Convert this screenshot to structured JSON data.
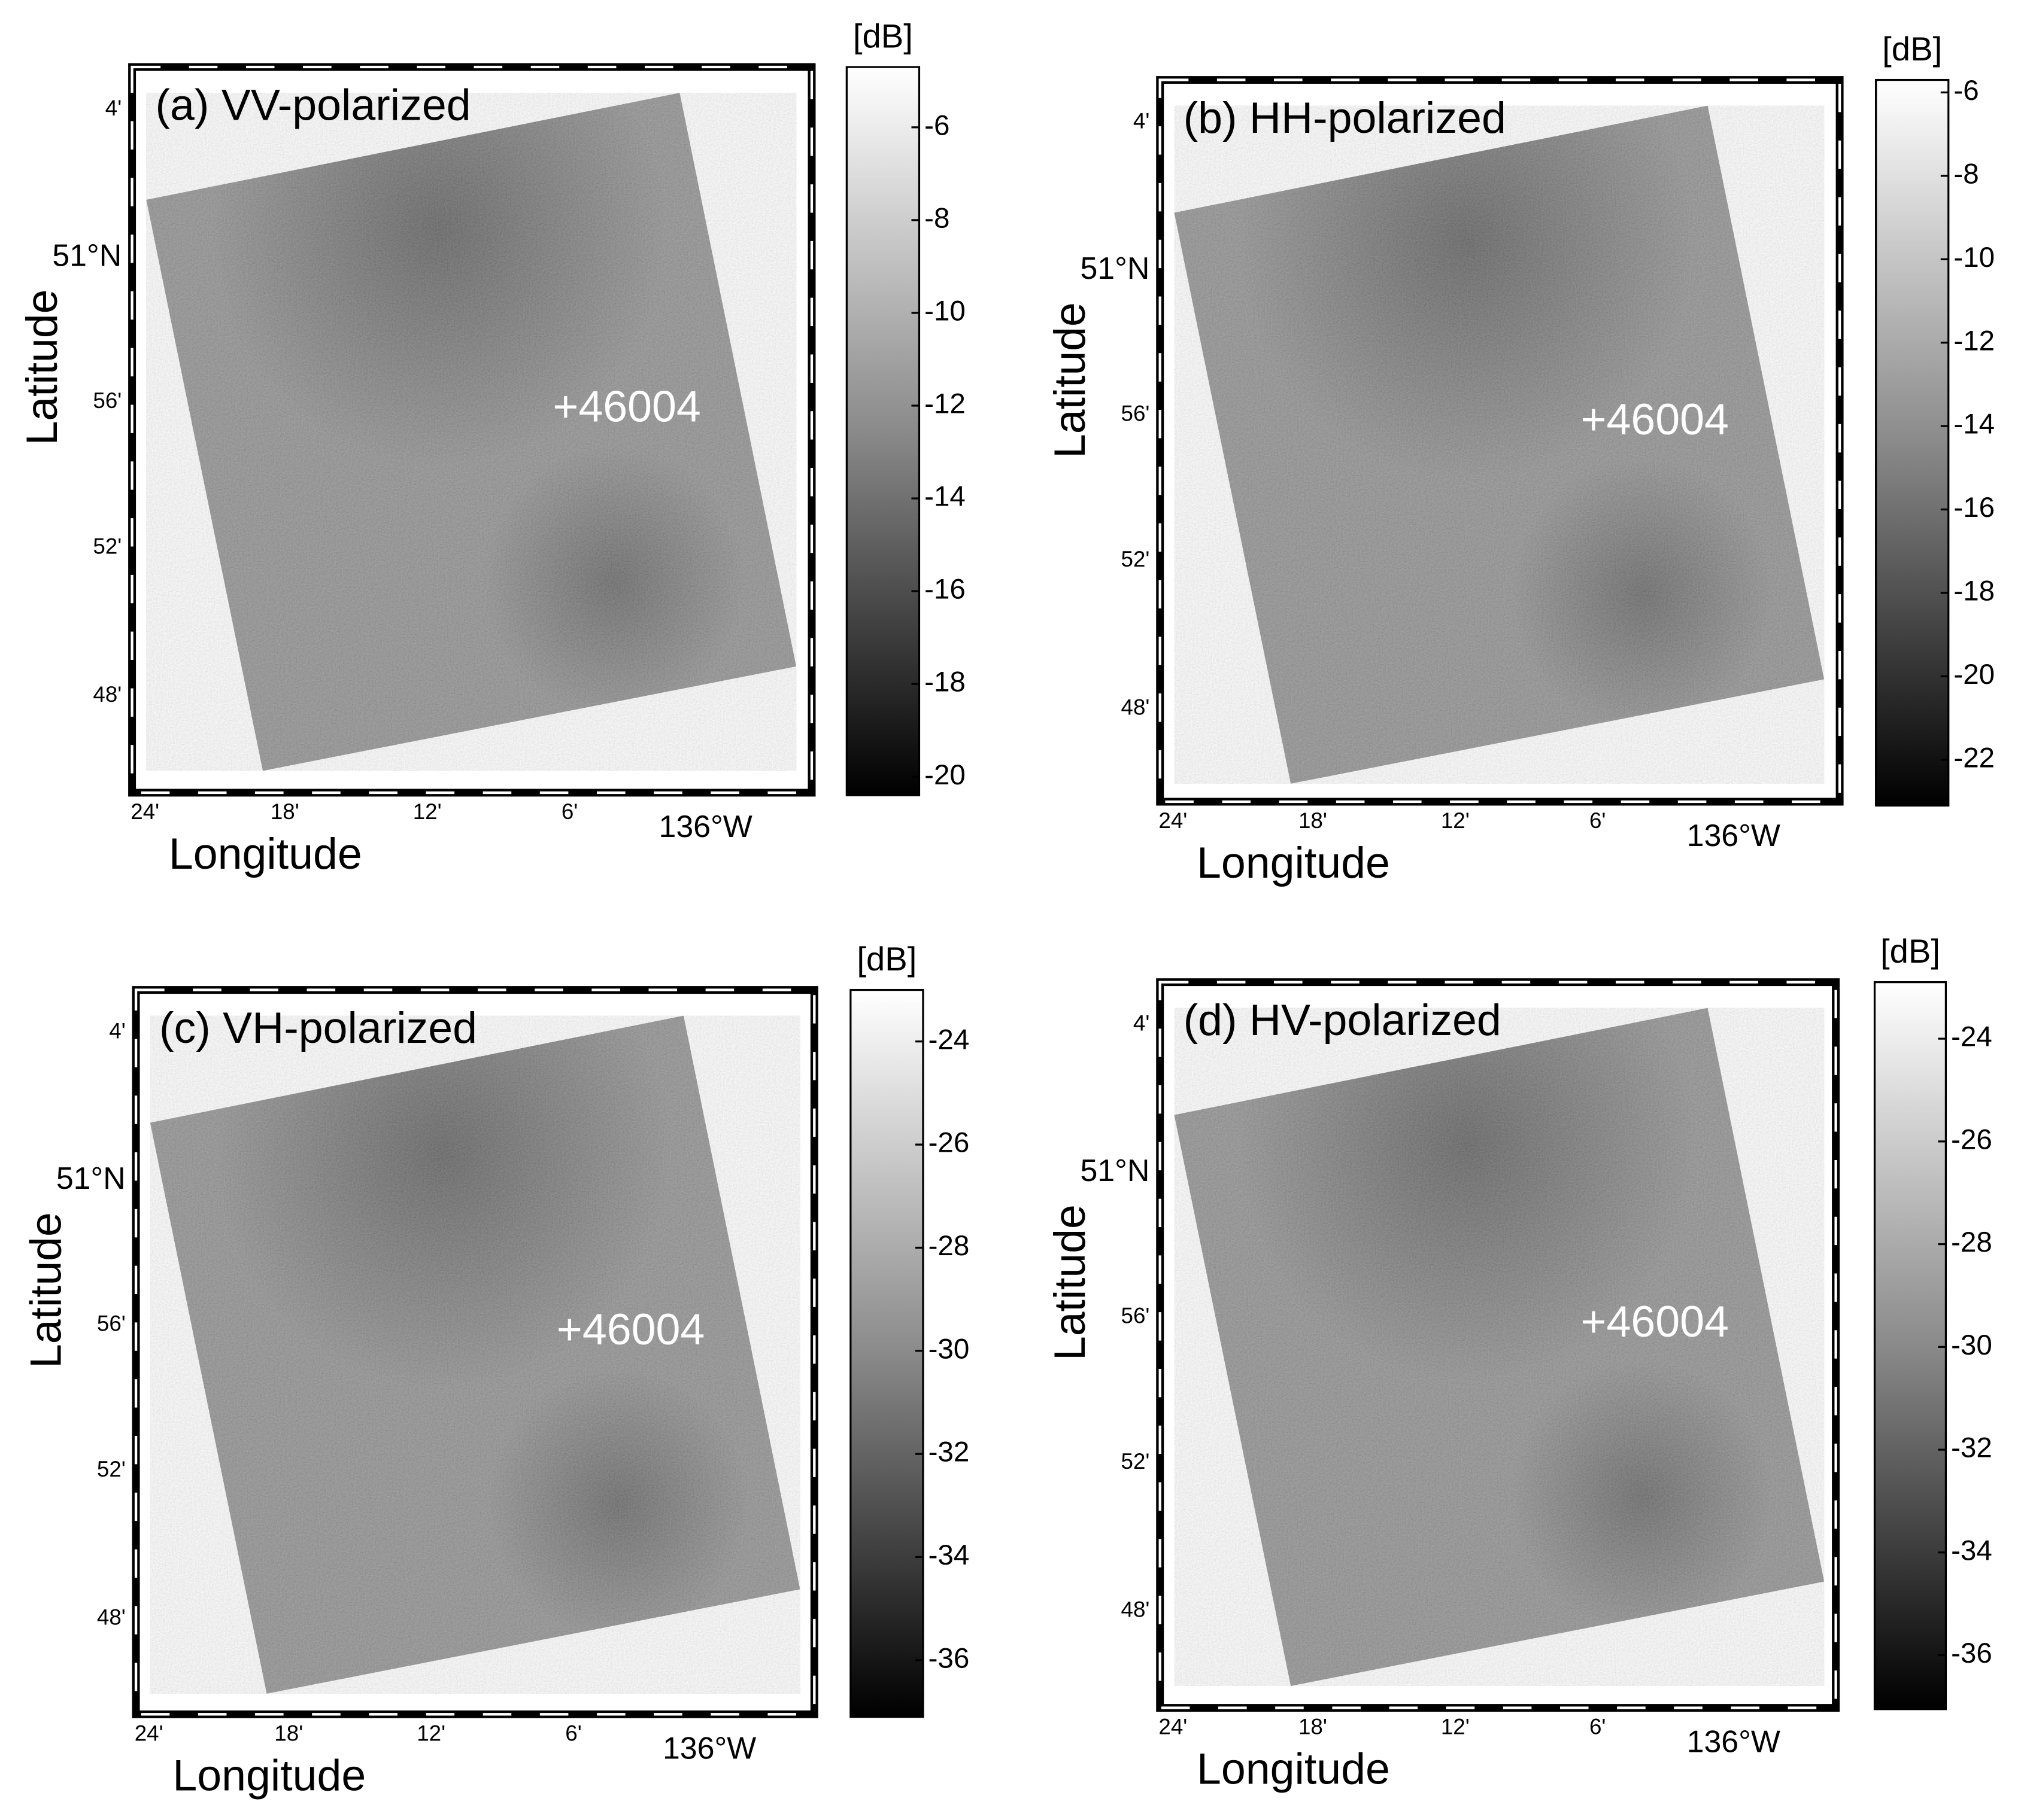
{
  "panels": [
    {
      "title": "(a) VV-polarized",
      "unit": "[dB]",
      "clim": [
        -4.7,
        -20.4
      ],
      "ticks": [
        -6,
        -8,
        -10,
        -12,
        -14,
        -16,
        -18,
        -20
      ],
      "lat_ticks": [
        "4'",
        "51°N",
        "56'",
        "52'",
        "48'"
      ],
      "lon_ticks": [
        "24'",
        "18'",
        "12'",
        "6'",
        "136°W"
      ],
      "xlabel": "Longitude",
      "ylabel": "Latitude",
      "buoy": "+46004"
    },
    {
      "title": "(b) HH-polarized",
      "unit": "[dB]",
      "clim": [
        -5.7,
        -23.1
      ],
      "ticks": [
        -6,
        -8,
        -10,
        -12,
        -14,
        -16,
        -18,
        -20,
        -22
      ],
      "lat_ticks": [
        "4'",
        "51°N",
        "56'",
        "52'",
        "48'"
      ],
      "lon_ticks": [
        "24'",
        "18'",
        "12'",
        "6'",
        "136°W"
      ],
      "xlabel": "Longitude",
      "ylabel": "Latitude",
      "buoy": "+46004"
    },
    {
      "title": "(c) VH-polarized",
      "unit": "[dB]",
      "clim": [
        -23,
        -37.1
      ],
      "ticks": [
        -24,
        -26,
        -28,
        -30,
        -32,
        -34,
        -36
      ],
      "lat_ticks": [
        "4'",
        "51°N",
        "56'",
        "52'",
        "48'"
      ],
      "lon_ticks": [
        "24'",
        "18'",
        "12'",
        "6'",
        "136°W"
      ],
      "xlabel": "Longitude",
      "ylabel": "Latitude",
      "buoy": "+46004"
    },
    {
      "title": "(d) HV-polarized",
      "unit": "[dB]",
      "clim": [
        -22.9,
        -37.05
      ],
      "ticks": [
        -24,
        -26,
        -28,
        -30,
        -32,
        -34,
        -36
      ],
      "lat_ticks": [
        "4'",
        "51°N",
        "56'",
        "52'",
        "48'"
      ],
      "lon_ticks": [
        "24'",
        "18'",
        "12'",
        "6'",
        "136°W"
      ],
      "xlabel": "Longitude",
      "ylabel": "Latitude",
      "buoy": "+46004"
    }
  ]
}
